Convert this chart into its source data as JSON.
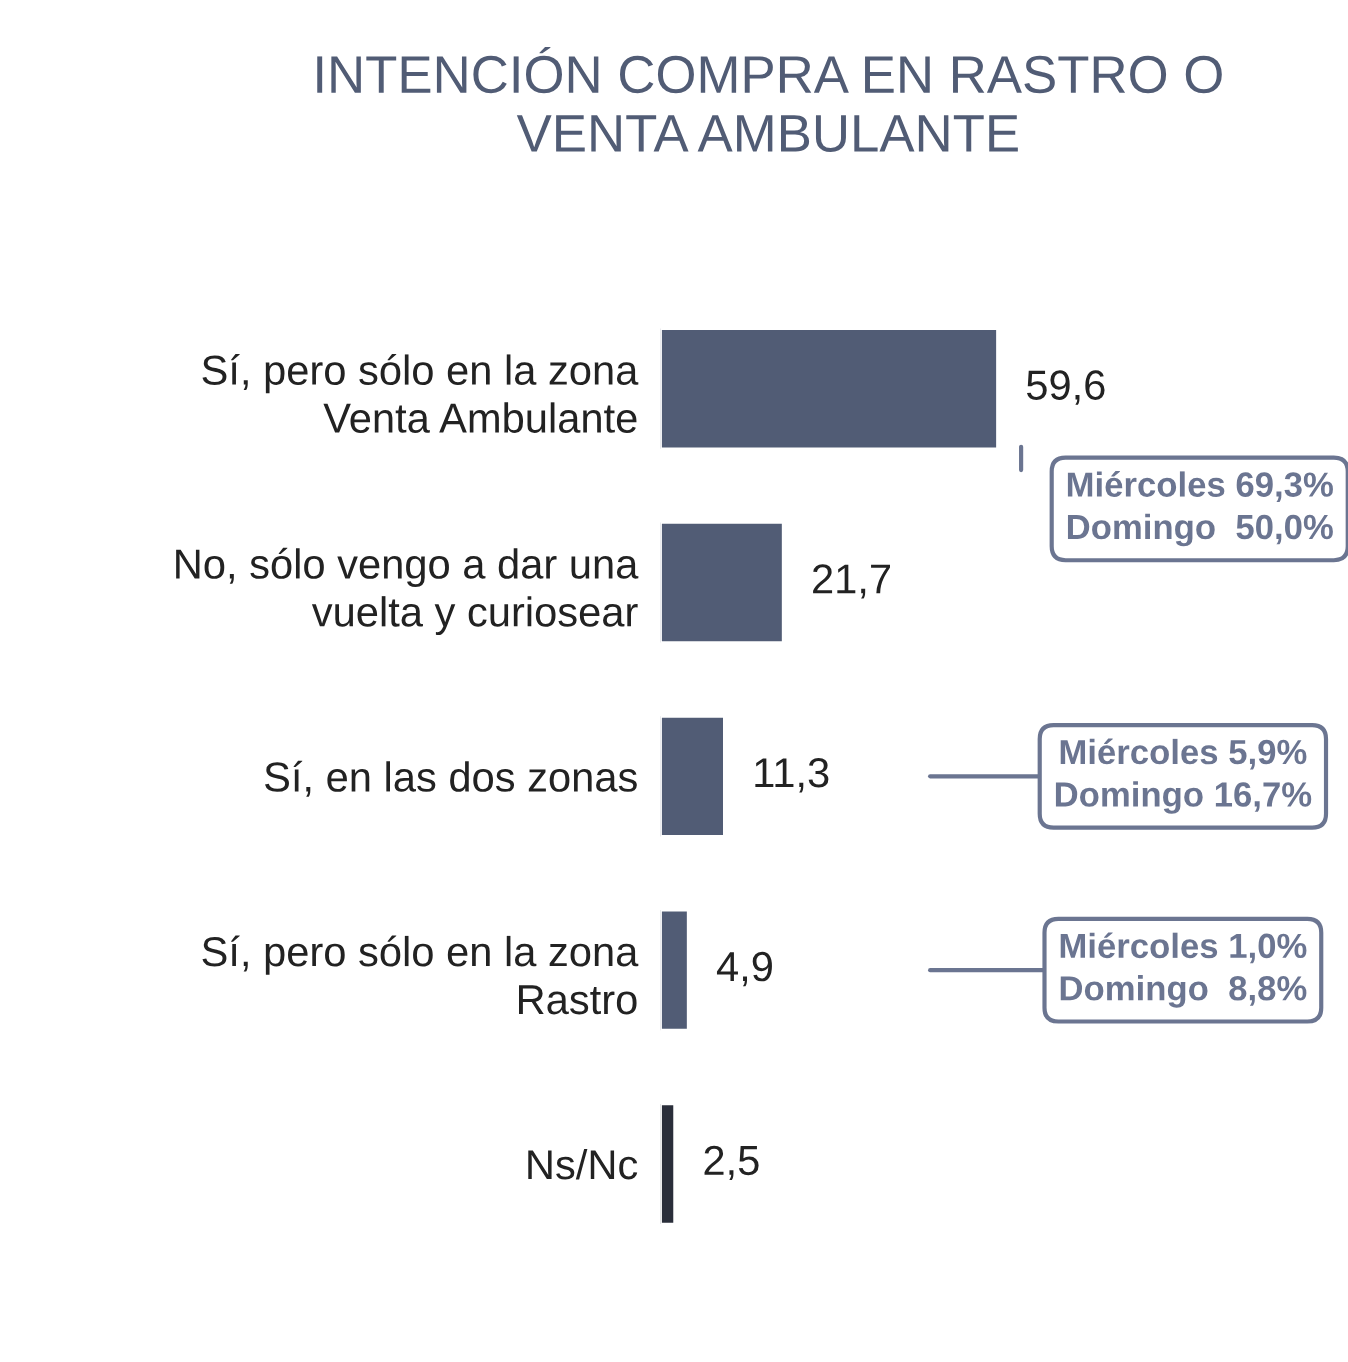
{
  "chart_data": {
    "type": "bar",
    "orientation": "horizontal",
    "title": "INTENCIÓN COMPRA EN RASTRO O\nVENTA AMBULANTE",
    "categories": [
      "Sí, pero sólo en la zona\nVenta Ambulante",
      "No, sólo vengo a dar una\nvuelta y curiosear",
      "Sí, en las dos zonas",
      "Sí, pero sólo en la zona\nRastro",
      "Ns/Nc"
    ],
    "values": [
      59.6,
      21.7,
      11.3,
      4.9,
      2.5
    ],
    "colors": [
      "#515c75",
      "#515c75",
      "#515c75",
      "#515c75",
      "#2a2e3a"
    ],
    "value_labels": [
      "59,6",
      "21,7",
      "11,3",
      "4,9",
      "2,5"
    ],
    "annotations": [
      "Miércoles 69,3%\nDomingo  50,0%",
      "Miércoles 5,9%\nDomingo 16,7%",
      "Miércoles 1,0%\nDomingo  8,8%"
    ],
    "grid": false,
    "legend": false
  }
}
